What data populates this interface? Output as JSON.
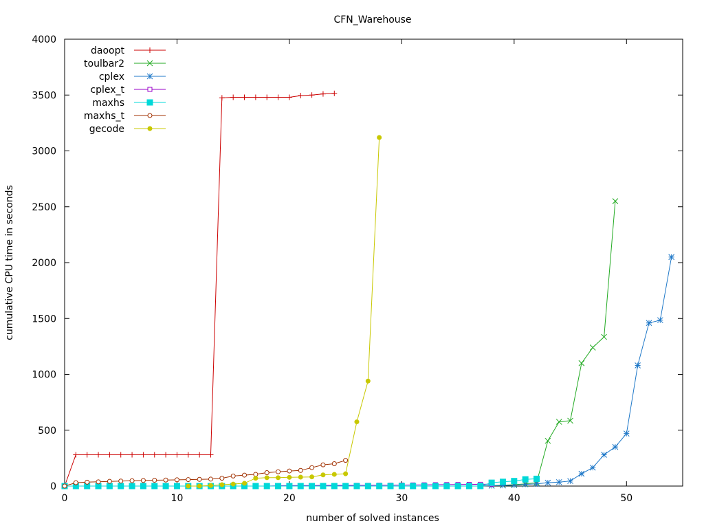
{
  "chart_data": {
    "type": "line",
    "title": "CFN_Warehouse",
    "xlabel": "number of solved instances",
    "ylabel": "cumulative CPU time in seconds",
    "xlim": [
      0,
      55
    ],
    "ylim": [
      0,
      4000
    ],
    "xticks": [
      0,
      10,
      20,
      30,
      40,
      50
    ],
    "yticks": [
      0,
      500,
      1000,
      1500,
      2000,
      2500,
      3000,
      3500,
      4000
    ],
    "legend_position": "top-left",
    "series": [
      {
        "name": "daoopt",
        "color": "#cc0000",
        "marker": "plus",
        "points": [
          [
            0,
            0
          ],
          [
            1,
            280
          ],
          [
            2,
            280
          ],
          [
            3,
            280
          ],
          [
            4,
            280
          ],
          [
            5,
            280
          ],
          [
            6,
            280
          ],
          [
            7,
            280
          ],
          [
            8,
            280
          ],
          [
            9,
            280
          ],
          [
            10,
            280
          ],
          [
            11,
            280
          ],
          [
            12,
            280
          ],
          [
            13,
            280
          ],
          [
            14,
            3475
          ],
          [
            15,
            3480
          ],
          [
            16,
            3480
          ],
          [
            17,
            3480
          ],
          [
            18,
            3480
          ],
          [
            19,
            3480
          ],
          [
            20,
            3480
          ],
          [
            21,
            3495
          ],
          [
            22,
            3500
          ],
          [
            23,
            3510
          ],
          [
            24,
            3515
          ]
        ]
      },
      {
        "name": "toulbar2",
        "color": "#22aa22",
        "marker": "cross",
        "points": [
          [
            0,
            0
          ],
          [
            1,
            0
          ],
          [
            2,
            0
          ],
          [
            3,
            0
          ],
          [
            4,
            0
          ],
          [
            5,
            0
          ],
          [
            6,
            0
          ],
          [
            7,
            0
          ],
          [
            8,
            0
          ],
          [
            9,
            0
          ],
          [
            10,
            0
          ],
          [
            11,
            0
          ],
          [
            12,
            0
          ],
          [
            13,
            0
          ],
          [
            14,
            0
          ],
          [
            15,
            0
          ],
          [
            16,
            0
          ],
          [
            17,
            0
          ],
          [
            18,
            0
          ],
          [
            19,
            0
          ],
          [
            20,
            0
          ],
          [
            21,
            0
          ],
          [
            22,
            0
          ],
          [
            23,
            0
          ],
          [
            24,
            0
          ],
          [
            25,
            0
          ],
          [
            26,
            0
          ],
          [
            27,
            0
          ],
          [
            28,
            0
          ],
          [
            29,
            0
          ],
          [
            30,
            0
          ],
          [
            31,
            0
          ],
          [
            32,
            0
          ],
          [
            33,
            0
          ],
          [
            34,
            0
          ],
          [
            35,
            0
          ],
          [
            36,
            0
          ],
          [
            37,
            0
          ],
          [
            38,
            5
          ],
          [
            39,
            8
          ],
          [
            40,
            12
          ],
          [
            41,
            20
          ],
          [
            42,
            30
          ],
          [
            43,
            405
          ],
          [
            44,
            575
          ],
          [
            45,
            585
          ],
          [
            46,
            1100
          ],
          [
            47,
            1240
          ],
          [
            48,
            1335
          ],
          [
            49,
            2550
          ]
        ]
      },
      {
        "name": "cplex",
        "color": "#1f78c8",
        "marker": "star",
        "points": [
          [
            0,
            0
          ],
          [
            1,
            0
          ],
          [
            2,
            0
          ],
          [
            3,
            0
          ],
          [
            4,
            0
          ],
          [
            5,
            0
          ],
          [
            6,
            0
          ],
          [
            7,
            0
          ],
          [
            8,
            0
          ],
          [
            9,
            0
          ],
          [
            10,
            0
          ],
          [
            11,
            0
          ],
          [
            12,
            0
          ],
          [
            13,
            0
          ],
          [
            14,
            0
          ],
          [
            15,
            0
          ],
          [
            16,
            0
          ],
          [
            17,
            0
          ],
          [
            18,
            0
          ],
          [
            19,
            0
          ],
          [
            20,
            0
          ],
          [
            21,
            0
          ],
          [
            22,
            0
          ],
          [
            23,
            0
          ],
          [
            24,
            0
          ],
          [
            25,
            0
          ],
          [
            26,
            0
          ],
          [
            27,
            0
          ],
          [
            28,
            0
          ],
          [
            29,
            0
          ],
          [
            30,
            0
          ],
          [
            31,
            0
          ],
          [
            32,
            0
          ],
          [
            33,
            0
          ],
          [
            34,
            0
          ],
          [
            35,
            0
          ],
          [
            36,
            0
          ],
          [
            37,
            0
          ],
          [
            38,
            3
          ],
          [
            39,
            5
          ],
          [
            40,
            8
          ],
          [
            41,
            15
          ],
          [
            42,
            20
          ],
          [
            43,
            30
          ],
          [
            44,
            35
          ],
          [
            45,
            45
          ],
          [
            46,
            110
          ],
          [
            47,
            165
          ],
          [
            48,
            280
          ],
          [
            49,
            350
          ],
          [
            50,
            470
          ],
          [
            51,
            1080
          ],
          [
            52,
            1460
          ],
          [
            53,
            1485
          ],
          [
            54,
            2050
          ]
        ]
      },
      {
        "name": "cplex_t",
        "color": "#9a00c8",
        "marker": "square-open",
        "points": [
          [
            0,
            0
          ],
          [
            1,
            0
          ],
          [
            2,
            0
          ],
          [
            3,
            0
          ],
          [
            4,
            0
          ],
          [
            5,
            0
          ],
          [
            6,
            0
          ],
          [
            7,
            0
          ],
          [
            8,
            0
          ],
          [
            9,
            0
          ],
          [
            10,
            0
          ],
          [
            11,
            0
          ],
          [
            12,
            0
          ],
          [
            13,
            0
          ],
          [
            14,
            0
          ],
          [
            15,
            0
          ],
          [
            16,
            0
          ],
          [
            17,
            0
          ],
          [
            18,
            0
          ],
          [
            19,
            3
          ],
          [
            20,
            4
          ],
          [
            21,
            5
          ],
          [
            22,
            5
          ],
          [
            23,
            6
          ],
          [
            24,
            6
          ],
          [
            25,
            6
          ],
          [
            26,
            7
          ],
          [
            27,
            7
          ],
          [
            28,
            8
          ],
          [
            29,
            8
          ],
          [
            30,
            9
          ],
          [
            31,
            10
          ],
          [
            32,
            11
          ],
          [
            33,
            12
          ],
          [
            34,
            13
          ],
          [
            35,
            14
          ],
          [
            36,
            15
          ],
          [
            37,
            16
          ],
          [
            38,
            17
          ]
        ]
      },
      {
        "name": "maxhs",
        "color": "#00d8d8",
        "marker": "square-filled",
        "points": [
          [
            0,
            0
          ],
          [
            1,
            0
          ],
          [
            2,
            0
          ],
          [
            3,
            0
          ],
          [
            4,
            0
          ],
          [
            5,
            0
          ],
          [
            6,
            0
          ],
          [
            7,
            0
          ],
          [
            8,
            0
          ],
          [
            9,
            0
          ],
          [
            10,
            0
          ],
          [
            11,
            0
          ],
          [
            12,
            0
          ],
          [
            13,
            0
          ],
          [
            14,
            0
          ],
          [
            15,
            0
          ],
          [
            16,
            0
          ],
          [
            17,
            0
          ],
          [
            18,
            0
          ],
          [
            19,
            0
          ],
          [
            20,
            0
          ],
          [
            21,
            0
          ],
          [
            22,
            0
          ],
          [
            23,
            0
          ],
          [
            24,
            0
          ],
          [
            25,
            0
          ],
          [
            26,
            0
          ],
          [
            27,
            0
          ],
          [
            28,
            0
          ],
          [
            29,
            0
          ],
          [
            30,
            0
          ],
          [
            31,
            0
          ],
          [
            32,
            0
          ],
          [
            33,
            0
          ],
          [
            34,
            0
          ],
          [
            35,
            0
          ],
          [
            36,
            0
          ],
          [
            37,
            0
          ],
          [
            38,
            30
          ],
          [
            39,
            38
          ],
          [
            40,
            45
          ],
          [
            41,
            60
          ],
          [
            42,
            65
          ]
        ]
      },
      {
        "name": "maxhs_t",
        "color": "#a03000",
        "marker": "circle-open",
        "points": [
          [
            0,
            0
          ],
          [
            1,
            30
          ],
          [
            2,
            35
          ],
          [
            3,
            38
          ],
          [
            4,
            42
          ],
          [
            5,
            45
          ],
          [
            6,
            48
          ],
          [
            7,
            50
          ],
          [
            8,
            52
          ],
          [
            9,
            54
          ],
          [
            10,
            56
          ],
          [
            11,
            58
          ],
          [
            12,
            60
          ],
          [
            13,
            62
          ],
          [
            14,
            70
          ],
          [
            15,
            90
          ],
          [
            16,
            98
          ],
          [
            17,
            105
          ],
          [
            18,
            120
          ],
          [
            19,
            128
          ],
          [
            20,
            135
          ],
          [
            21,
            140
          ],
          [
            22,
            165
          ],
          [
            23,
            190
          ],
          [
            24,
            200
          ],
          [
            25,
            230
          ]
        ]
      },
      {
        "name": "gecode",
        "color": "#c8c800",
        "marker": "dot-filled",
        "points": [
          [
            11,
            0
          ],
          [
            12,
            0
          ],
          [
            13,
            5
          ],
          [
            14,
            12
          ],
          [
            15,
            18
          ],
          [
            16,
            25
          ],
          [
            17,
            70
          ],
          [
            18,
            75
          ],
          [
            19,
            75
          ],
          [
            20,
            78
          ],
          [
            21,
            80
          ],
          [
            22,
            82
          ],
          [
            23,
            100
          ],
          [
            24,
            105
          ],
          [
            25,
            110
          ],
          [
            26,
            575
          ],
          [
            27,
            940
          ],
          [
            28,
            3120
          ]
        ]
      }
    ]
  }
}
